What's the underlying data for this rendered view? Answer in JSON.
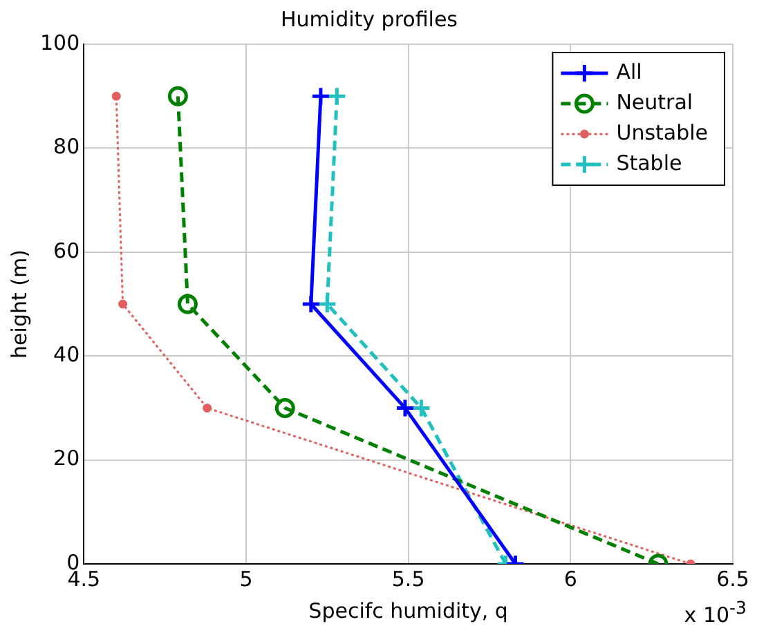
{
  "chart_data": {
    "type": "line",
    "title": "Humidity profiles",
    "xlabel": "Specifc humidity, q",
    "ylabel": "height (m)",
    "annotations": [
      "x 10$^{-3}$"
    ],
    "x": [
      0,
      30,
      50,
      90
    ],
    "series": [
      {
        "name": "All",
        "color": "#0000ff",
        "values": [
          5.83,
          5.49,
          5.2,
          5.23
        ],
        "marker": "cross",
        "line_style": "solid"
      },
      {
        "name": "Neutral",
        "color": "#008000",
        "values": [
          6.27,
          5.12,
          4.82,
          4.79
        ],
        "marker": "circle",
        "line_style": "dashed"
      },
      {
        "name": "Unstable",
        "color": "#e06060",
        "values": [
          6.37,
          4.88,
          4.62,
          4.6
        ],
        "marker": "circle",
        "line_style": "dotted"
      },
      {
        "name": "Stable",
        "color": "#20c0c0",
        "values": [
          5.8,
          5.54,
          5.25,
          5.28
        ],
        "marker": "cross",
        "line_style": "dashed"
      }
    ],
    "orientation": "horizontal",
    "xlim": [
      4.5,
      6.5
    ],
    "xticks": [
      4.5,
      5,
      5.5,
      6,
      6.5
    ],
    "ylim": [
      0,
      100
    ],
    "yticks": [
      0,
      20,
      40,
      60,
      80,
      100
    ],
    "grid": true,
    "legend": "top right"
  }
}
